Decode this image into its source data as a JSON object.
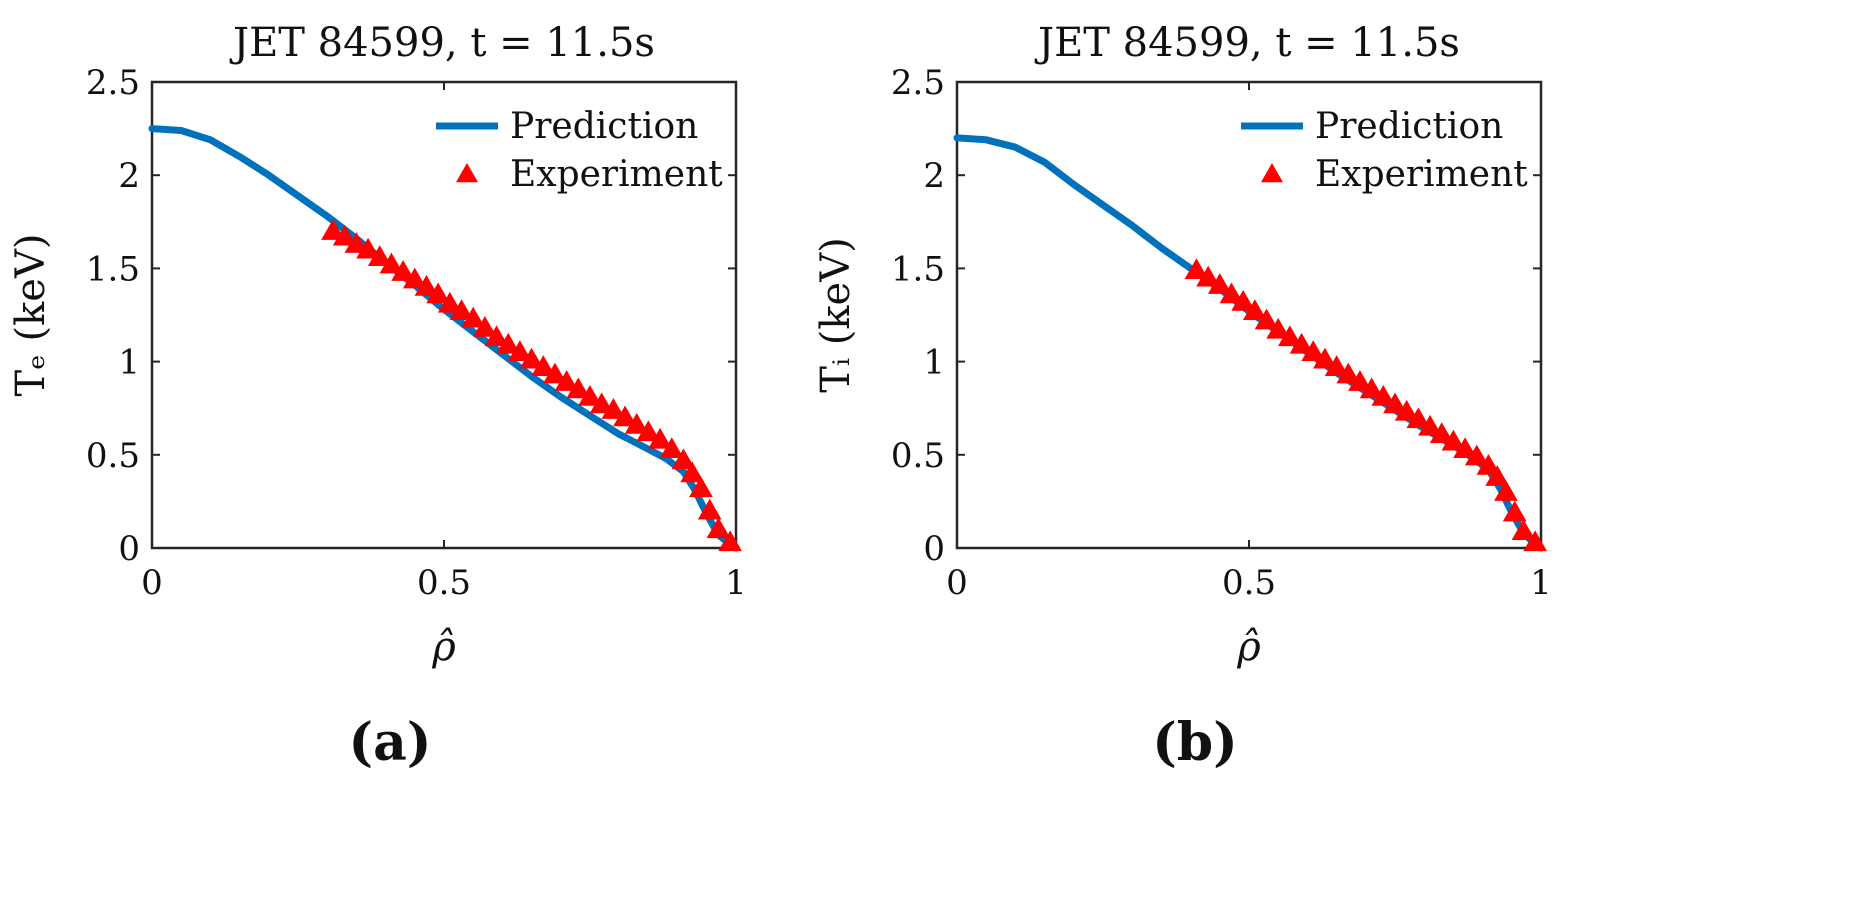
{
  "chart_data": [
    {
      "type": "line",
      "panel_label": "(a)",
      "title": "JET 84599, t = 11.5s",
      "xlabel": "ρ̂",
      "ylabel": "Tₑ (keV)",
      "xlim": [
        0,
        1
      ],
      "ylim": [
        0,
        2.5
      ],
      "xticks": [
        0,
        0.5,
        1
      ],
      "xtick_labels": [
        "0",
        "0.5",
        "1"
      ],
      "yticks": [
        0,
        0.5,
        1,
        1.5,
        2,
        2.5
      ],
      "ytick_labels": [
        "0",
        "0.5",
        "1",
        "1.5",
        "2",
        "2.5"
      ],
      "legend_position": "top-right",
      "series": [
        {
          "name": "Prediction",
          "color": "#0072BD",
          "marker": "line",
          "x": [
            0,
            0.05,
            0.1,
            0.15,
            0.2,
            0.25,
            0.3,
            0.35,
            0.4,
            0.45,
            0.5,
            0.55,
            0.6,
            0.65,
            0.7,
            0.75,
            0.8,
            0.85,
            0.88,
            0.91,
            0.93,
            0.95,
            0.97,
            0.99,
            1.0
          ],
          "y": [
            2.25,
            2.24,
            2.19,
            2.1,
            2.0,
            1.89,
            1.78,
            1.66,
            1.53,
            1.41,
            1.28,
            1.16,
            1.04,
            0.92,
            0.81,
            0.71,
            0.61,
            0.53,
            0.48,
            0.41,
            0.31,
            0.18,
            0.07,
            0.02,
            0.0
          ]
        },
        {
          "name": "Experiment",
          "color": "#FF0000",
          "marker": "triangle",
          "x": [
            0.31,
            0.33,
            0.35,
            0.37,
            0.39,
            0.41,
            0.43,
            0.45,
            0.47,
            0.49,
            0.51,
            0.53,
            0.55,
            0.57,
            0.59,
            0.61,
            0.63,
            0.65,
            0.67,
            0.69,
            0.71,
            0.73,
            0.75,
            0.77,
            0.79,
            0.81,
            0.83,
            0.85,
            0.87,
            0.89,
            0.91,
            0.925,
            0.94,
            0.955,
            0.97,
            0.99
          ],
          "y": [
            1.7,
            1.67,
            1.63,
            1.6,
            1.56,
            1.52,
            1.48,
            1.44,
            1.4,
            1.36,
            1.31,
            1.27,
            1.23,
            1.18,
            1.13,
            1.09,
            1.05,
            1.01,
            0.97,
            0.93,
            0.89,
            0.85,
            0.81,
            0.77,
            0.74,
            0.7,
            0.66,
            0.62,
            0.58,
            0.53,
            0.47,
            0.4,
            0.32,
            0.2,
            0.1,
            0.03
          ]
        }
      ]
    },
    {
      "type": "line",
      "panel_label": "(b)",
      "title": "JET 84599, t = 11.5s",
      "xlabel": "ρ̂",
      "ylabel": "Tᵢ (keV)",
      "xlim": [
        0,
        1
      ],
      "ylim": [
        0,
        2.5
      ],
      "xticks": [
        0,
        0.5,
        1
      ],
      "xtick_labels": [
        "0",
        "0.5",
        "1"
      ],
      "yticks": [
        0,
        0.5,
        1,
        1.5,
        2,
        2.5
      ],
      "ytick_labels": [
        "0",
        "0.5",
        "1",
        "1.5",
        "2",
        "2.5"
      ],
      "legend_position": "top-right",
      "series": [
        {
          "name": "Prediction",
          "color": "#0072BD",
          "marker": "line",
          "x": [
            0,
            0.05,
            0.1,
            0.15,
            0.2,
            0.25,
            0.3,
            0.35,
            0.4,
            0.45,
            0.5,
            0.55,
            0.6,
            0.65,
            0.7,
            0.75,
            0.8,
            0.85,
            0.88,
            0.91,
            0.93,
            0.95,
            0.97,
            0.99,
            1.0
          ],
          "y": [
            2.2,
            2.19,
            2.15,
            2.07,
            1.95,
            1.84,
            1.73,
            1.61,
            1.5,
            1.39,
            1.27,
            1.16,
            1.05,
            0.94,
            0.84,
            0.74,
            0.64,
            0.55,
            0.49,
            0.42,
            0.32,
            0.19,
            0.08,
            0.02,
            0.0
          ]
        },
        {
          "name": "Experiment",
          "color": "#FF0000",
          "marker": "triangle",
          "x": [
            0.41,
            0.43,
            0.45,
            0.47,
            0.49,
            0.51,
            0.53,
            0.55,
            0.57,
            0.59,
            0.61,
            0.63,
            0.65,
            0.67,
            0.69,
            0.71,
            0.73,
            0.75,
            0.77,
            0.79,
            0.81,
            0.83,
            0.85,
            0.87,
            0.89,
            0.91,
            0.925,
            0.94,
            0.955,
            0.97,
            0.99
          ],
          "y": [
            1.49,
            1.45,
            1.41,
            1.36,
            1.32,
            1.27,
            1.22,
            1.17,
            1.13,
            1.09,
            1.05,
            1.01,
            0.97,
            0.93,
            0.89,
            0.85,
            0.81,
            0.77,
            0.73,
            0.69,
            0.65,
            0.61,
            0.57,
            0.53,
            0.49,
            0.44,
            0.38,
            0.3,
            0.19,
            0.09,
            0.03
          ]
        }
      ]
    }
  ]
}
